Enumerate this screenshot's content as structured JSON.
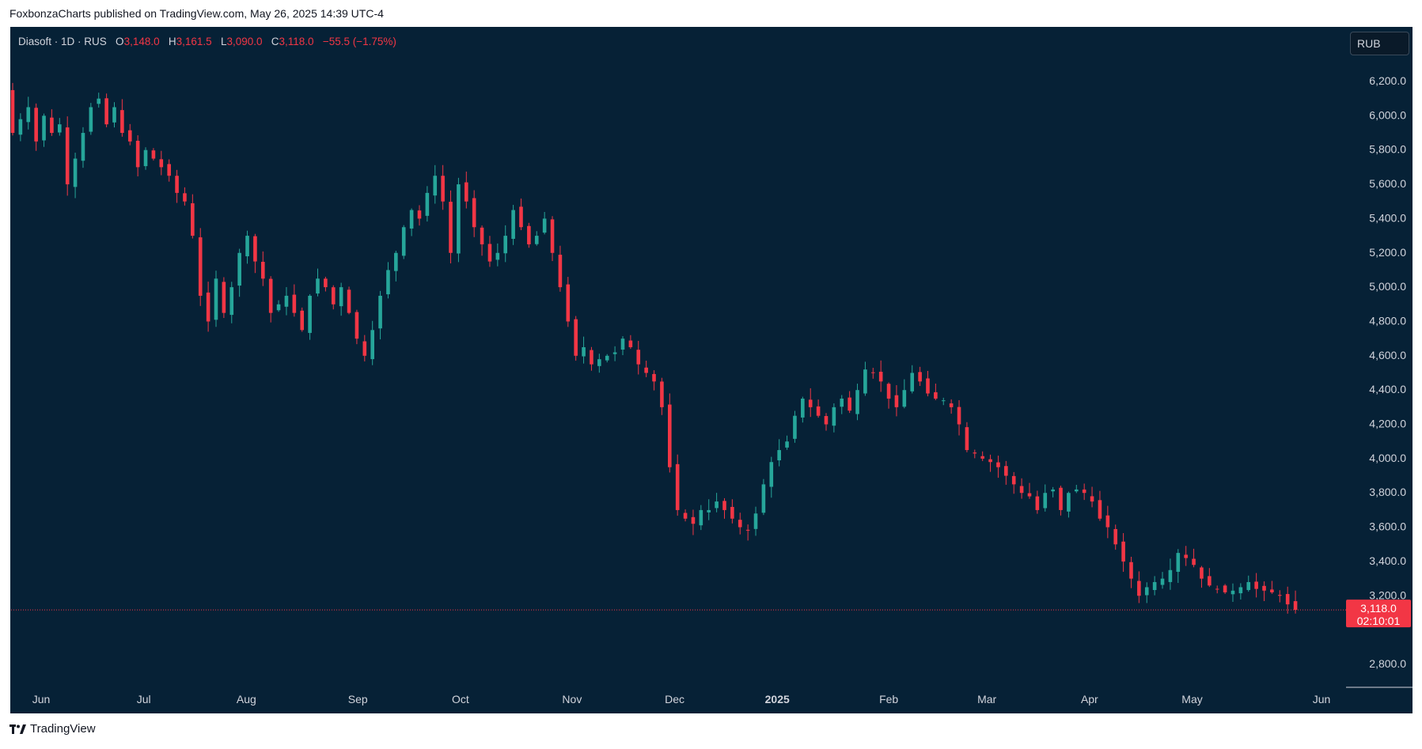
{
  "header": {
    "publisher_line": "FoxbonzaCharts published on TradingView.com, May 26, 2025 14:39 UTC-4"
  },
  "legend": {
    "symbol": "Diasoft · 1D · RUS",
    "o_label": "O",
    "o_value": "3,148.0",
    "h_label": "H",
    "h_value": "3,161.5",
    "l_label": "L",
    "l_value": "3,090.0",
    "c_label": "C",
    "c_value": "3,118.0",
    "change": "−55.5 (−1.75%)"
  },
  "currency_button": "RUB",
  "price_tag": {
    "price": "3,118.0",
    "countdown": "02:10:01"
  },
  "footer": {
    "brand": "TradingView",
    "logo_icon": "tradingview-logo-icon"
  },
  "colors": {
    "background": "#062136",
    "up": "#26a69a",
    "down": "#f23645",
    "axis_text": "#d1d4dc"
  },
  "chart_data": {
    "type": "candlestick",
    "ylim": [
      2700,
      6400
    ],
    "y_ticks": [
      {
        "value": 2800,
        "label": "2,800.0"
      },
      {
        "value": 3200,
        "label": "3,200.0"
      },
      {
        "value": 3400,
        "label": "3,400.0"
      },
      {
        "value": 3600,
        "label": "3,600.0"
      },
      {
        "value": 3800,
        "label": "3,800.0"
      },
      {
        "value": 4000,
        "label": "4,000.0"
      },
      {
        "value": 4200,
        "label": "4,200.0"
      },
      {
        "value": 4400,
        "label": "4,400.0"
      },
      {
        "value": 4600,
        "label": "4,600.0"
      },
      {
        "value": 4800,
        "label": "4,800.0"
      },
      {
        "value": 5000,
        "label": "5,000.0"
      },
      {
        "value": 5200,
        "label": "5,200.0"
      },
      {
        "value": 5400,
        "label": "5,400.0"
      },
      {
        "value": 5600,
        "label": "5,600.0"
      },
      {
        "value": 5800,
        "label": "5,800.0"
      },
      {
        "value": 6000,
        "label": "6,000.0"
      },
      {
        "value": 6200,
        "label": "6,200.0"
      }
    ],
    "x_ticks": [
      {
        "day": 0,
        "label": "Jun",
        "bold": false
      },
      {
        "day": 23,
        "label": "Jul",
        "bold": false
      },
      {
        "day": 46,
        "label": "Aug",
        "bold": false
      },
      {
        "day": 71,
        "label": "Sep",
        "bold": false
      },
      {
        "day": 94,
        "label": "Oct",
        "bold": false
      },
      {
        "day": 119,
        "label": "Nov",
        "bold": false
      },
      {
        "day": 142,
        "label": "Dec",
        "bold": false
      },
      {
        "day": 165,
        "label": "2025",
        "bold": true
      },
      {
        "day": 190,
        "label": "Feb",
        "bold": false
      },
      {
        "day": 212,
        "label": "Mar",
        "bold": false
      },
      {
        "day": 235,
        "label": "Apr",
        "bold": false
      },
      {
        "day": 258,
        "label": "May",
        "bold": false
      },
      {
        "day": 287,
        "label": "Jun",
        "bold": false
      }
    ],
    "last_price": 3118.0,
    "closes": [
      5900,
      5980,
      6050,
      5850,
      6000,
      5900,
      5950,
      5600,
      5750,
      5900,
      6050,
      6100,
      5950,
      6050,
      5900,
      5850,
      5700,
      5800,
      5750,
      5700,
      5650,
      5550,
      5500,
      5300,
      4950,
      4800,
      5050,
      4850,
      5000,
      5200,
      5300,
      5150,
      5050,
      4850,
      4900,
      4950,
      4850,
      4750,
      4950,
      5050,
      5000,
      4900,
      5000,
      4850,
      4700,
      4600,
      4750,
      4950,
      5100,
      5200,
      5350,
      5450,
      5400,
      5550,
      5650,
      5500,
      5200,
      5600,
      5500,
      5350,
      5250,
      5150,
      5200,
      5300,
      5450,
      5350,
      5250,
      5300,
      5400,
      5200,
      5000,
      4800,
      4600,
      4650,
      4550,
      4580,
      4600,
      4620,
      4700,
      4650,
      4550,
      4500,
      4450,
      4300,
      3950,
      3700,
      3650,
      3620,
      3700,
      3700,
      3750,
      3700,
      3650,
      3600,
      3580,
      3680,
      3850,
      3980,
      4050,
      4100,
      4250,
      4350,
      4300,
      4250,
      4200,
      4300,
      4350,
      4280,
      4400,
      4520,
      4500,
      4450,
      4350,
      4300,
      4400,
      4500,
      4450,
      4380,
      4350,
      4340,
      4300,
      4200,
      4050,
      4030,
      4000,
      3980,
      3950,
      3900,
      3850,
      3800,
      3780,
      3700,
      3800,
      3820,
      3700,
      3800,
      3820,
      3800,
      3750,
      3650,
      3600,
      3500,
      3400,
      3300,
      3200,
      3250,
      3280,
      3300,
      3350,
      3450,
      3420,
      3380,
      3300,
      3260,
      3240,
      3220,
      3230,
      3250,
      3280,
      3240,
      3230,
      3220,
      3200,
      3150,
      3118
    ],
    "series": [
      {
        "name": "Diasoft",
        "kind": "ohlc_daily"
      }
    ]
  }
}
